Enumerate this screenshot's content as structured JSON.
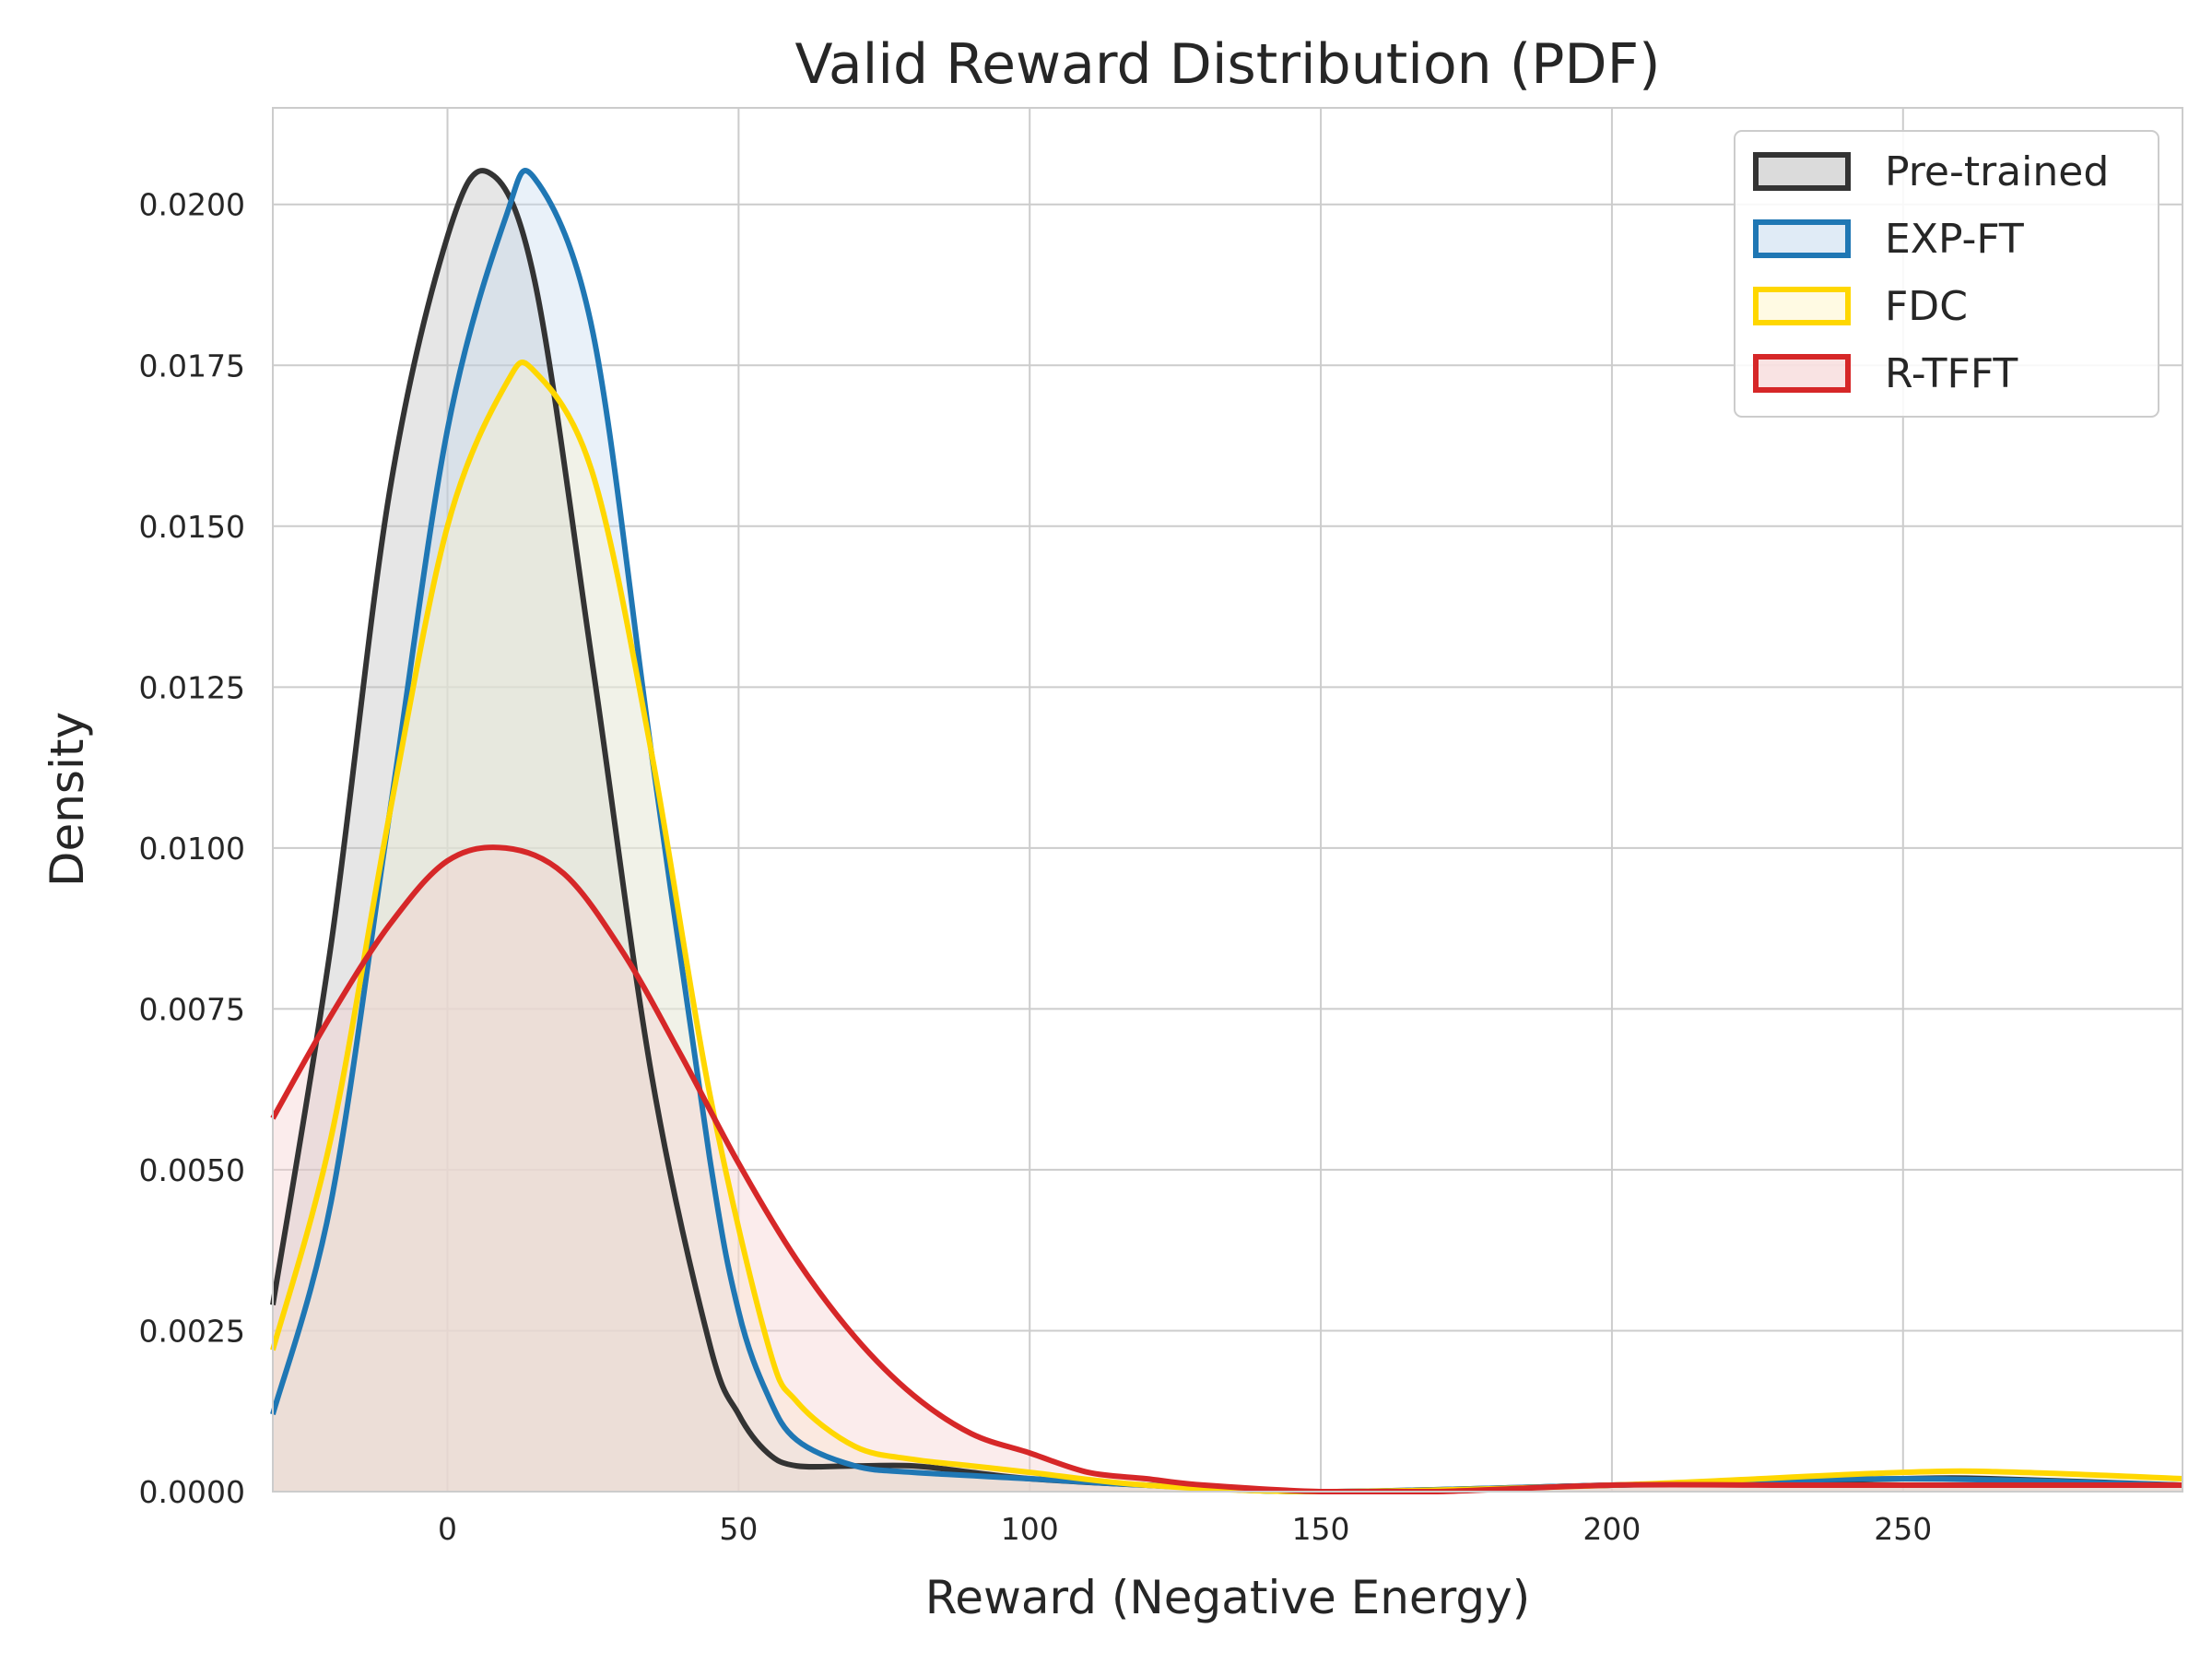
{
  "chart_data": {
    "type": "area",
    "title": "Valid Reward Distribution (PDF)",
    "xlabel": "Reward (Negative Energy)",
    "ylabel": "Density",
    "xlim": [
      -30,
      298
    ],
    "ylim": [
      0,
      0.0215
    ],
    "xticks": [
      0,
      50,
      100,
      150,
      200,
      250
    ],
    "xtick_labels": [
      "0",
      "50",
      "100",
      "150",
      "200",
      "250"
    ],
    "yticks": [
      0,
      0.0025,
      0.005,
      0.0075,
      0.01,
      0.0125,
      0.015,
      0.0175,
      0.02
    ],
    "ytick_labels": [
      "0.0000",
      "0.0025",
      "0.0050",
      "0.0075",
      "0.0100",
      "0.0125",
      "0.0150",
      "0.0175",
      "0.0200"
    ],
    "grid": true,
    "legend_position": "top-right",
    "series": [
      {
        "name": "Pre-trained",
        "color": "#333333",
        "fill": "#bdbdbd",
        "x": [
          -30,
          -20,
          -10,
          0,
          7,
          15,
          25,
          35,
          45,
          50,
          55,
          60,
          70,
          80,
          90,
          100,
          120,
          150,
          200,
          250,
          265,
          298
        ],
        "y": [
          0.0029,
          0.0085,
          0.0155,
          0.0195,
          0.0205,
          0.0188,
          0.0128,
          0.0065,
          0.0023,
          0.0012,
          0.0006,
          0.0004,
          0.0004,
          0.0004,
          0.0003,
          0.0002,
          0.0001,
          0.0,
          0.0001,
          0.0002,
          0.0002,
          0.0001
        ]
      },
      {
        "name": "EXP-FT",
        "color": "#1f77b4",
        "fill": "#c6dbef",
        "x": [
          -30,
          -20,
          -10,
          0,
          10,
          15,
          25,
          35,
          45,
          50,
          55,
          60,
          70,
          80,
          100,
          120,
          150,
          200,
          250,
          298
        ],
        "y": [
          0.0012,
          0.0045,
          0.0105,
          0.0165,
          0.0198,
          0.0204,
          0.018,
          0.0115,
          0.0052,
          0.0028,
          0.0015,
          0.0008,
          0.0004,
          0.0003,
          0.0002,
          0.0001,
          0.0,
          0.0001,
          0.0002,
          0.0001
        ]
      },
      {
        "name": "FDC",
        "color": "#ffd700",
        "fill": "#fff5cc",
        "x": [
          -30,
          -20,
          -10,
          0,
          10,
          15,
          25,
          35,
          45,
          55,
          60,
          70,
          80,
          90,
          100,
          120,
          150,
          200,
          250,
          270,
          298
        ],
        "y": [
          0.0022,
          0.0055,
          0.0105,
          0.015,
          0.0172,
          0.0174,
          0.0158,
          0.0115,
          0.0062,
          0.0023,
          0.0014,
          0.0007,
          0.0005,
          0.0004,
          0.0003,
          0.0001,
          0.0,
          0.0001,
          0.0003,
          0.0003,
          0.0002
        ]
      },
      {
        "name": "R-TFFT",
        "color": "#d62728",
        "fill": "#f4cccc",
        "x": [
          -30,
          -20,
          -10,
          0,
          10,
          20,
          30,
          40,
          50,
          60,
          70,
          80,
          90,
          100,
          110,
          120,
          130,
          150,
          170,
          200,
          230,
          260,
          298
        ],
        "y": [
          0.0058,
          0.0074,
          0.0088,
          0.0098,
          0.01,
          0.0096,
          0.0084,
          0.0068,
          0.0051,
          0.0036,
          0.0024,
          0.0015,
          0.0009,
          0.0006,
          0.0003,
          0.0002,
          0.0001,
          0.0,
          0.0,
          0.0001,
          0.0001,
          0.0001,
          0.0001
        ]
      }
    ]
  }
}
